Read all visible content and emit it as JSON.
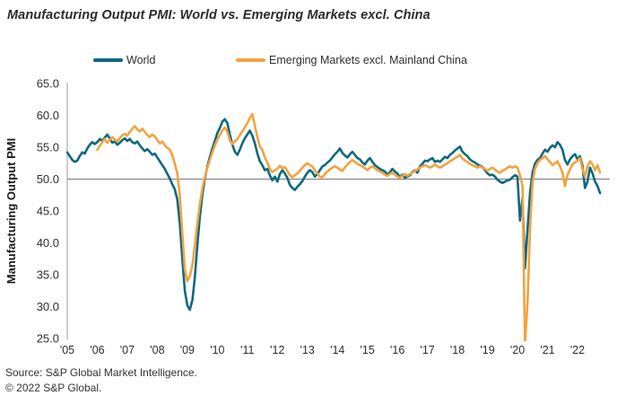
{
  "header": {
    "title": "Manufacturing Output PMI: World vs. Emerging Markets excl. China"
  },
  "legend": {
    "position": "top",
    "items": [
      {
        "label": "World",
        "color": "#0d6980"
      },
      {
        "label": "Emerging Markets excl. Mainland China",
        "color": "#f2a33f"
      }
    ]
  },
  "footer": {
    "source": "Source: S&P Global Market Intelligence.",
    "copyright": "© 2022 S&P Global."
  },
  "chart_data": {
    "type": "line",
    "title": "Manufacturing Output PMI: World vs. Emerging Markets excl. China",
    "xlabel": "",
    "ylabel": "Manufacturing Output PMI",
    "ylim": [
      25.0,
      65.0
    ],
    "y_tick_labels": [
      "25.0",
      "30.0",
      "35.0",
      "40.0",
      "45.0",
      "50.0",
      "55.0",
      "60.0",
      "65.0"
    ],
    "y_tick_values": [
      25,
      30,
      35,
      40,
      45,
      50,
      55,
      60,
      65
    ],
    "x_tick_labels": [
      "'05",
      "'06",
      "'07",
      "'08",
      "'09",
      "'10",
      "'11",
      "'12",
      "'13",
      "'14",
      "'15",
      "'16",
      "'17",
      "'18",
      "'19",
      "'20",
      "'21",
      "'22"
    ],
    "grid": false,
    "reference_line_y": 50,
    "reference_line_color": "#878787",
    "axis_color": "#9a9a9a",
    "frequency": "monthly",
    "series": [
      {
        "name": "World",
        "color": "#0d6980",
        "start": "2005-01",
        "values": [
          54.2,
          53.6,
          53.0,
          52.7,
          52.9,
          53.6,
          54.2,
          54.0,
          54.8,
          55.4,
          55.8,
          55.5,
          55.8,
          56.3,
          56.0,
          56.5,
          57.0,
          56.4,
          55.7,
          55.9,
          55.4,
          55.7,
          56.1,
          56.4,
          56.0,
          56.3,
          55.8,
          55.6,
          55.9,
          55.3,
          54.8,
          54.4,
          54.7,
          54.3,
          53.8,
          54.0,
          53.4,
          52.8,
          52.2,
          51.6,
          50.8,
          50.1,
          49.2,
          48.4,
          46.8,
          43.0,
          37.5,
          32.5,
          30.2,
          29.5,
          31.0,
          34.5,
          39.5,
          44.0,
          47.5,
          50.0,
          52.0,
          53.5,
          54.8,
          56.0,
          57.2,
          58.0,
          59.0,
          59.4,
          58.8,
          57.0,
          55.4,
          54.3,
          53.8,
          54.6,
          55.6,
          56.4,
          57.0,
          57.6,
          56.8,
          55.6,
          54.0,
          52.8,
          52.2,
          51.4,
          51.6,
          50.6,
          49.8,
          50.4,
          49.6,
          50.8,
          51.4,
          50.9,
          50.2,
          49.1,
          48.6,
          48.3,
          48.8,
          49.2,
          49.7,
          50.4,
          51.0,
          51.4,
          51.1,
          50.4,
          50.8,
          51.4,
          52.0,
          52.2,
          52.6,
          52.9,
          53.4,
          53.9,
          54.3,
          54.8,
          54.1,
          53.7,
          53.4,
          53.9,
          54.3,
          53.8,
          53.3,
          53.1,
          52.6,
          52.3,
          52.9,
          53.3,
          52.7,
          52.2,
          51.9,
          51.6,
          51.4,
          51.2,
          50.7,
          51.1,
          51.6,
          51.2,
          50.9,
          50.3,
          50.7,
          50.2,
          50.4,
          50.6,
          51.1,
          51.4,
          51.0,
          52.0,
          52.4,
          52.9,
          52.8,
          53.1,
          53.3,
          52.7,
          52.9,
          52.7,
          53.1,
          53.5,
          53.3,
          53.8,
          54.1,
          54.5,
          54.8,
          55.1,
          54.3,
          53.9,
          53.6,
          53.1,
          52.8,
          52.6,
          52.3,
          52.1,
          51.9,
          51.4,
          50.9,
          50.6,
          50.7,
          50.4,
          49.9,
          49.6,
          49.4,
          49.6,
          49.8,
          49.9,
          50.3,
          50.6,
          50.4,
          43.5,
          47.0,
          36.0,
          42.0,
          47.8,
          51.0,
          52.4,
          53.0,
          53.3,
          54.0,
          54.6,
          54.3,
          54.9,
          55.3,
          55.0,
          55.8,
          55.4,
          54.6,
          53.0,
          52.3,
          53.1,
          53.6,
          53.9,
          53.1,
          53.6,
          52.1,
          48.6,
          49.6,
          51.8,
          50.9,
          49.6,
          48.9,
          47.8
        ]
      },
      {
        "name": "Emerging Markets excl. Mainland China",
        "color": "#f2a33f",
        "start": "2006-01",
        "values": [
          54.6,
          55.2,
          55.8,
          56.3,
          55.7,
          56.1,
          56.6,
          56.2,
          55.9,
          56.4,
          56.9,
          57.1,
          56.8,
          57.4,
          57.9,
          58.3,
          57.8,
          57.5,
          57.9,
          57.4,
          56.9,
          56.6,
          57.0,
          56.7,
          56.1,
          55.6,
          55.9,
          55.3,
          54.9,
          54.6,
          53.8,
          52.4,
          50.9,
          47.5,
          41.5,
          35.8,
          34.0,
          34.8,
          36.5,
          39.5,
          43.0,
          46.0,
          48.5,
          50.3,
          51.8,
          53.0,
          54.2,
          55.3,
          56.2,
          56.9,
          57.6,
          58.1,
          57.4,
          56.1,
          55.5,
          55.9,
          56.3,
          56.9,
          57.5,
          58.1,
          58.8,
          59.6,
          60.2,
          58.4,
          56.6,
          55.1,
          54.6,
          53.4,
          52.6,
          51.6,
          51.1,
          51.4,
          51.6,
          52.1,
          51.7,
          51.9,
          51.3,
          50.6,
          50.3,
          50.6,
          50.9,
          51.3,
          51.8,
          52.2,
          52.5,
          52.2,
          52.0,
          51.4,
          50.9,
          50.4,
          50.3,
          50.8,
          51.2,
          51.5,
          51.8,
          52.0,
          51.8,
          51.5,
          51.3,
          51.8,
          52.3,
          52.7,
          53.0,
          52.7,
          52.4,
          52.2,
          52.0,
          51.7,
          51.4,
          51.8,
          52.0,
          51.7,
          51.4,
          51.2,
          51.0,
          50.7,
          50.5,
          50.8,
          51.0,
          50.7,
          50.4,
          50.2,
          50.5,
          50.8,
          50.5,
          50.8,
          51.0,
          51.3,
          51.5,
          51.8,
          52.0,
          52.2,
          52.0,
          51.8,
          52.0,
          52.3,
          52.0,
          51.8,
          52.0,
          52.3,
          52.5,
          52.8,
          53.0,
          53.3,
          53.5,
          53.8,
          53.2,
          52.9,
          52.7,
          52.4,
          52.2,
          52.0,
          51.8,
          52.0,
          51.8,
          51.6,
          51.3,
          51.6,
          51.8,
          51.5,
          51.2,
          51.0,
          51.3,
          51.5,
          51.8,
          52.0,
          51.8,
          52.0,
          51.8,
          50.6,
          49.0,
          24.0,
          30.5,
          42.0,
          49.5,
          51.6,
          52.5,
          53.0,
          53.3,
          53.6,
          53.1,
          52.7,
          52.2,
          52.5,
          52.8,
          52.0,
          51.0,
          48.9,
          50.6,
          51.5,
          52.3,
          52.6,
          52.9,
          53.3,
          51.6,
          50.4,
          52.0,
          52.8,
          52.3,
          51.4,
          52.2,
          51.0
        ]
      }
    ]
  }
}
